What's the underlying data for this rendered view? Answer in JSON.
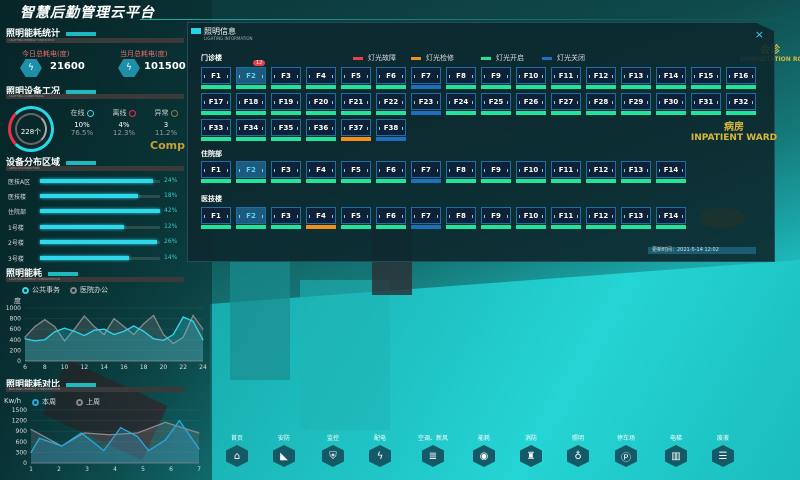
{
  "app": {
    "title": "智慧后勤管理云平台"
  },
  "energy_stats": {
    "title": "照明能耗统计",
    "subtitle": "LIGHTING ENERGY STATISTICS",
    "today_label": "今日总耗电(度)",
    "today_value": "21600",
    "month_label": "当月总耗电(度)",
    "month_value": "101500",
    "icon": "lightning-icon"
  },
  "device_status": {
    "title": "照明设备工况",
    "subtitle": "LIGHTING CONDITIONS",
    "total": "228个",
    "items": [
      {
        "label": "在线",
        "count": "10%",
        "pct": "76.5%",
        "color": "#25d8e6"
      },
      {
        "label": "离线",
        "count": "4%",
        "pct": "12.3%",
        "color": "#e8304a"
      },
      {
        "label": "异常",
        "count": "3",
        "pct": "11.2%",
        "color": "#8a7a4a"
      }
    ]
  },
  "distribution": {
    "title": "设备分布区域",
    "subtitle": "AREA DISTRIBUTION",
    "rows": [
      {
        "name": "医技A区",
        "value": 24
      },
      {
        "name": "医技楼",
        "value": 18
      },
      {
        "name": "住院部",
        "value": 42
      },
      {
        "name": "1号楼",
        "value": 12
      },
      {
        "name": "2号楼",
        "value": 26
      },
      {
        "name": "3号楼",
        "value": 14
      }
    ]
  },
  "chart_data": [
    {
      "type": "area",
      "title": "照明能耗",
      "subtitle": "LIGHTING ENERGY CONSUMPTION",
      "ylabel": "度",
      "ylim": [
        0,
        1000
      ],
      "yticks": [
        0,
        200,
        400,
        600,
        800,
        1000
      ],
      "xticks": [
        6,
        8,
        10,
        12,
        14,
        16,
        18,
        20,
        22,
        24
      ],
      "x": [
        6,
        7,
        8,
        9,
        10,
        11,
        12,
        13,
        14,
        15,
        16,
        17,
        18,
        19,
        20,
        21,
        22,
        23,
        24
      ],
      "series": [
        {
          "name": "公共事务",
          "color": "#2fd7ea",
          "values": [
            420,
            380,
            400,
            550,
            620,
            560,
            480,
            580,
            600,
            500,
            560,
            660,
            560,
            420,
            390,
            500,
            830,
            750,
            400
          ]
        },
        {
          "name": "医院办公",
          "color": "#888888",
          "values": [
            450,
            650,
            780,
            650,
            380,
            600,
            850,
            650,
            500,
            800,
            650,
            500,
            700,
            860,
            500,
            330,
            450,
            860,
            600
          ]
        }
      ]
    },
    {
      "type": "area",
      "title": "照明能耗对比",
      "subtitle": "BUILDING ENERGY CONSUMPTION",
      "ylabel": "Kw/h",
      "ylim": [
        0,
        1500
      ],
      "yticks": [
        0,
        300,
        600,
        900,
        1200,
        1500
      ],
      "xticks": [
        1,
        2,
        3,
        4,
        5,
        6,
        7
      ],
      "series": [
        {
          "name": "本周",
          "color": "#2aa8e0",
          "x": [
            0.8,
            1.3,
            2.1,
            2.8,
            3.6,
            4.2,
            4.8,
            5.2,
            5.8,
            6.3,
            7
          ],
          "values": [
            300,
            700,
            480,
            850,
            350,
            1000,
            750,
            350,
            650,
            1200,
            400
          ]
        },
        {
          "name": "上周",
          "color": "#888888",
          "x": [
            0.8,
            2.1,
            2.9,
            3.8,
            4.8,
            5.8,
            7
          ],
          "values": [
            950,
            480,
            850,
            800,
            850,
            1150,
            850
          ]
        }
      ]
    }
  ],
  "modal": {
    "title": "照明信息",
    "subtitle": "LIGHTING INFORMATION",
    "close": "×",
    "legend": [
      {
        "label": "灯光故障",
        "color": "#e8404a"
      },
      {
        "label": "灯光检修",
        "color": "#f0901a"
      },
      {
        "label": "灯光开启",
        "color": "#22e39a"
      },
      {
        "label": "灯光关闭",
        "color": "#1f6fbf"
      }
    ],
    "groups": [
      {
        "name": "门诊楼",
        "badge": {
          "floor": "F2",
          "count": "12"
        },
        "floors": [
          "F1",
          "F2",
          "F3",
          "F4",
          "F5",
          "F6",
          "F7",
          "F8",
          "F9",
          "F10",
          "F11",
          "F12",
          "F13",
          "F14",
          "F15",
          "F16",
          "F17",
          "F18",
          "F19",
          "F20",
          "F21",
          "F22",
          "F23",
          "F24",
          "F25",
          "F26",
          "F27",
          "F28",
          "F29",
          "F30",
          "F31",
          "F32",
          "F33",
          "F34",
          "F35",
          "F36",
          "F37",
          "F38"
        ],
        "status": [
          "on",
          "on",
          "on",
          "on",
          "on",
          "on",
          "off",
          "on",
          "on",
          "on",
          "on",
          "on",
          "on",
          "on",
          "on",
          "on",
          "on",
          "on",
          "on",
          "on",
          "on",
          "on",
          "off",
          "on",
          "on",
          "on",
          "on",
          "on",
          "on",
          "on",
          "on",
          "on",
          "on",
          "on",
          "on",
          "on",
          "repair",
          "off"
        ],
        "selected": "F2"
      },
      {
        "name": "住院部",
        "floors": [
          "F1",
          "F2",
          "F3",
          "F4",
          "F5",
          "F6",
          "F7",
          "F8",
          "F9",
          "F10",
          "F11",
          "F12",
          "F13",
          "F14"
        ],
        "status": [
          "on",
          "on",
          "on",
          "on",
          "on",
          "on",
          "off",
          "on",
          "on",
          "on",
          "on",
          "on",
          "on",
          "on"
        ],
        "selected": "F2"
      },
      {
        "name": "医技楼",
        "floors": [
          "F1",
          "F2",
          "F3",
          "F4",
          "F5",
          "F6",
          "F7",
          "F8",
          "F9",
          "F10",
          "F11",
          "F12",
          "F13",
          "F14"
        ],
        "status": [
          "on",
          "on",
          "on",
          "repair",
          "on",
          "on",
          "off",
          "on",
          "on",
          "on",
          "on",
          "on",
          "on",
          "on"
        ],
        "selected": "F2"
      }
    ],
    "updated": "更新时间：2021-5-14  12:02"
  },
  "scene_labels": [
    {
      "text": "会诊"
    },
    {
      "text": "CONSULTATION ROOM"
    },
    {
      "text": "病房"
    },
    {
      "text": "INPATIENT WARD"
    },
    {
      "text": "Comp"
    }
  ],
  "nav": [
    {
      "label": "首页",
      "icon": "home-icon",
      "glyph": "⌂"
    },
    {
      "label": "安防",
      "icon": "camera-icon",
      "glyph": "◣"
    },
    {
      "label": "监控",
      "icon": "shield-icon",
      "glyph": "⛨"
    },
    {
      "label": "配电",
      "icon": "lightning-icon",
      "glyph": "ϟ"
    },
    {
      "label": "空调、新风",
      "icon": "air-conditioner-icon",
      "glyph": "≣"
    },
    {
      "label": "能耗",
      "icon": "energy-icon",
      "glyph": "◉"
    },
    {
      "label": "消防",
      "icon": "hydrant-icon",
      "glyph": "♜"
    },
    {
      "label": "照明",
      "icon": "bulb-icon",
      "glyph": "♁"
    },
    {
      "label": "停车场",
      "icon": "parking-icon",
      "glyph": "Ⓟ"
    },
    {
      "label": "电梯",
      "icon": "elevator-icon",
      "glyph": "▥"
    },
    {
      "label": "废液",
      "icon": "waste-icon",
      "glyph": "☰"
    }
  ]
}
